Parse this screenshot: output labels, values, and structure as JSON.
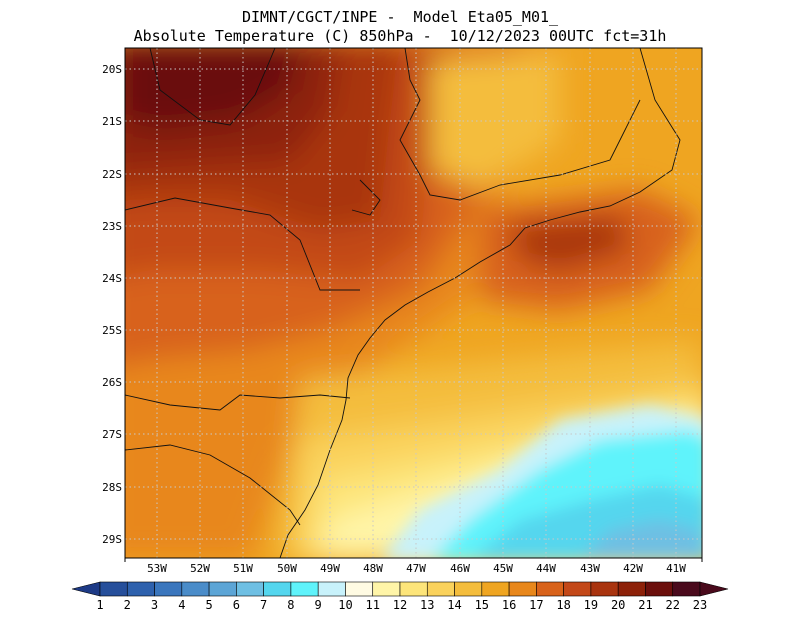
{
  "header": {
    "line1": "DIMNT/CGCT/INPE -  Model Eta05_M01_",
    "line2": "Absolute Temperature (C) 850hPa -  10/12/2023 00UTC fct=31h"
  },
  "map": {
    "lat_labels": [
      "20S",
      "21S",
      "22S",
      "23S",
      "24S",
      "25S",
      "26S",
      "27S",
      "28S",
      "29S"
    ],
    "lon_labels": [
      "53W",
      "52W",
      "51W",
      "50W",
      "49W",
      "48W",
      "47W",
      "46W",
      "45W",
      "44W",
      "43W",
      "42W",
      "41W"
    ],
    "grid": "dotted"
  },
  "colorbar": {
    "labels": [
      "1",
      "2",
      "3",
      "4",
      "5",
      "6",
      "7",
      "8",
      "9",
      "10",
      "11",
      "12",
      "13",
      "14",
      "15",
      "16",
      "17",
      "18",
      "19",
      "20",
      "21",
      "22",
      "23"
    ],
    "colors": [
      "#1d3a86",
      "#264f9b",
      "#2e61ad",
      "#3a76bd",
      "#4a8cc9",
      "#5ca5d6",
      "#6ebfe3",
      "#54d6ee",
      "#5ff3fb",
      "#c8f2fb",
      "#fffbe3",
      "#fff5a8",
      "#fde57a",
      "#fad25c",
      "#f4bd3c",
      "#efa521",
      "#e8871b",
      "#d8621a",
      "#c34818",
      "#a9340f",
      "#8d2109",
      "#6b0f0c",
      "#4a0a1c"
    ]
  }
}
